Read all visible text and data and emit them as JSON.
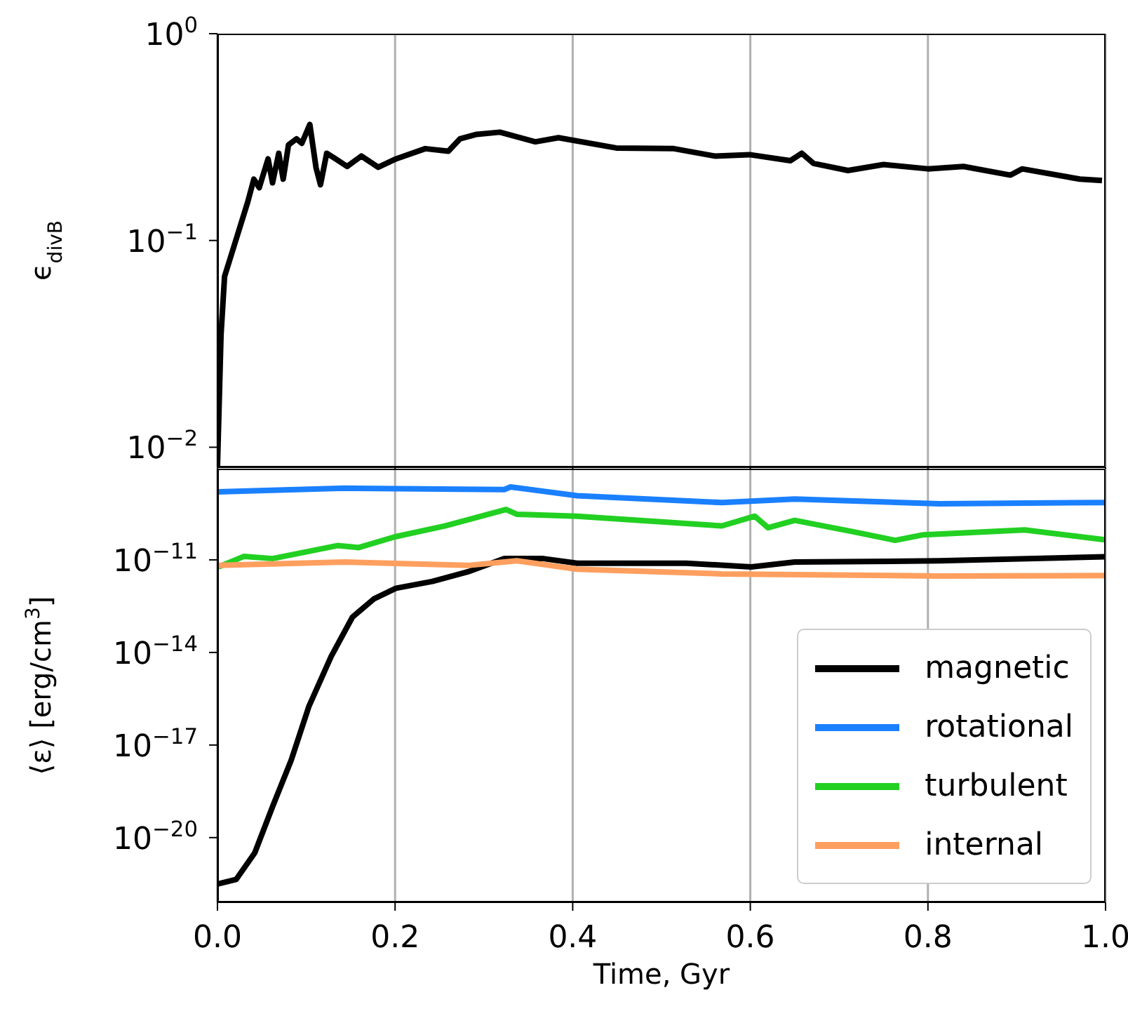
{
  "chart_data": [
    {
      "type": "line",
      "ylabel": "ϵ$_{divB}$",
      "log": "y",
      "grid": "x",
      "legend": false,
      "tick_labels": "y",
      "line_style": "solid",
      "marker": "none",
      "xlim": [
        0,
        1
      ],
      "xticks": [
        0,
        0.2,
        0.4,
        0.6,
        0.8,
        1
      ],
      "ylim": [
        0.008,
        1
      ],
      "yticks": [
        {
          "value": 0.01,
          "label": "10$^{−2}$"
        },
        {
          "value": 0.1,
          "label": "10$^{−1}$"
        },
        {
          "value": 1,
          "label": "10$^{0}$"
        }
      ],
      "series": [
        {
          "color": "#000000",
          "x": [
            0,
            0.004,
            0.008,
            0.018,
            0.034,
            0.041,
            0.047,
            0.057,
            0.062,
            0.069,
            0.074,
            0.08,
            0.089,
            0.095,
            0.104,
            0.111,
            0.116,
            0.123,
            0.133,
            0.146,
            0.162,
            0.181,
            0.201,
            0.234,
            0.26,
            0.273,
            0.292,
            0.318,
            0.358,
            0.384,
            0.449,
            0.514,
            0.56,
            0.599,
            0.645,
            0.658,
            0.671,
            0.71,
            0.75,
            0.8,
            0.84,
            0.893,
            0.906,
            0.971,
            0.996
          ],
          "values": [
            0.0081,
            0.035,
            0.067,
            0.092,
            0.153,
            0.198,
            0.18,
            0.248,
            0.19,
            0.264,
            0.198,
            0.29,
            0.31,
            0.295,
            0.364,
            0.225,
            0.186,
            0.264,
            0.248,
            0.228,
            0.256,
            0.226,
            0.248,
            0.278,
            0.27,
            0.31,
            0.326,
            0.334,
            0.3,
            0.314,
            0.28,
            0.278,
            0.256,
            0.26,
            0.243,
            0.264,
            0.236,
            0.218,
            0.233,
            0.222,
            0.228,
            0.207,
            0.222,
            0.198,
            0.195
          ]
        }
      ]
    },
    {
      "type": "line",
      "xlabel": "Time, Gyr",
      "ylabel": "⟨ε⟩ [erg/cm$^{3}$]",
      "log": "y",
      "grid": "x",
      "legend": "bottom right",
      "line_style": "solid",
      "marker": "none",
      "xlim": [
        0,
        1
      ],
      "xticks": [
        {
          "value": 0,
          "label": "0.0"
        },
        {
          "value": 0.2,
          "label": "0.2"
        },
        {
          "value": 0.4,
          "label": "0.4"
        },
        {
          "value": 0.6,
          "label": "0.6"
        },
        {
          "value": 0.8,
          "label": "0.8"
        },
        {
          "value": 1,
          "label": "1.0"
        }
      ],
      "ylim": [
        8e-23,
        9e-09
      ],
      "yticks": [
        {
          "value": 1e-20,
          "label": "10$^{−20}$"
        },
        {
          "value": 1e-17,
          "label": "10$^{−17}$"
        },
        {
          "value": 1e-14,
          "label": "10$^{−14}$"
        },
        {
          "value": 1e-11,
          "label": "10$^{−11}$"
        }
      ],
      "series": [
        {
          "name": "magnetic",
          "color": "#000000",
          "x": [
            0.001,
            0.021,
            0.042,
            0.062,
            0.083,
            0.103,
            0.128,
            0.152,
            0.176,
            0.201,
            0.242,
            0.282,
            0.323,
            0.367,
            0.405,
            0.528,
            0.601,
            0.65,
            0.813,
            0.999
          ],
          "values": [
            3.2e-22,
            4.4e-22,
            3.2e-21,
            1e-19,
            3.2e-18,
            1.8e-16,
            7.4e-15,
            1.4e-13,
            5.4e-13,
            1.2e-12,
            2e-12,
            4.1e-12,
            1.1e-11,
            1.1e-11,
            7.8e-12,
            7.8e-12,
            5.9e-12,
            8.5e-12,
            9.3e-12,
            1.26e-11
          ]
        },
        {
          "name": "rotational",
          "color": "#1a80ff",
          "x": [
            0,
            0.143,
            0.323,
            0.33,
            0.405,
            0.568,
            0.65,
            0.813,
            0.999
          ],
          "values": [
            1.6e-09,
            2.1e-09,
            1.9e-09,
            2.3e-09,
            1.2e-09,
            7.2e-10,
            9.3e-10,
            6.6e-10,
            7.2e-10
          ]
        },
        {
          "name": "turbulent",
          "color": "#22d022",
          "x": [
            0.001,
            0.03,
            0.062,
            0.135,
            0.159,
            0.2,
            0.256,
            0.325,
            0.337,
            0.405,
            0.568,
            0.605,
            0.62,
            0.65,
            0.713,
            0.763,
            0.795,
            0.909,
            0.999
          ],
          "values": [
            5.9e-12,
            1.3e-11,
            1.1e-11,
            2.9e-11,
            2.5e-11,
            5.6e-11,
            1.26e-10,
            4.3e-10,
            3e-10,
            2.6e-10,
            1.26e-10,
            2.6e-10,
            1.1e-10,
            1.9e-10,
            8.5e-11,
            4.3e-11,
            6.5e-11,
            9.3e-11,
            4.5e-11
          ]
        },
        {
          "name": "internal",
          "color": "#ff9f5f",
          "x": [
            0.001,
            0.143,
            0.282,
            0.337,
            0.405,
            0.568,
            0.813,
            0.999
          ],
          "values": [
            6.6e-12,
            8.5e-12,
            6.6e-12,
            9.3e-12,
            5e-12,
            3.5e-12,
            3e-12,
            3.1e-12
          ]
        }
      ]
    }
  ]
}
